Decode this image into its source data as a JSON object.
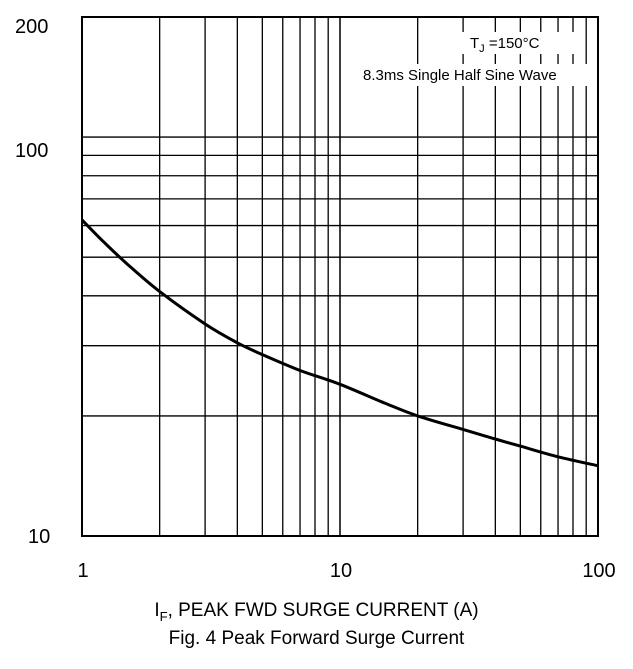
{
  "chart_data": {
    "type": "line",
    "xscale": "log",
    "yscale": "log",
    "xlim": [
      1,
      100
    ],
    "ylim": [
      10,
      200
    ],
    "xticks": [
      "1",
      "10",
      "100"
    ],
    "yticks": [
      "200",
      "100",
      "10"
    ],
    "grid": true,
    "xlabel_prefix": "I",
    "xlabel_sub": "F",
    "xlabel_rest": ", PEAK FWD SURGE CURRENT (A)",
    "caption": "Fig. 4  Peak Forward Surge Current",
    "annotations": {
      "tj_prefix": "T",
      "tj_sub": "J",
      "tj_rest": " =150°C",
      "wave": "8.3ms Single Half Sine Wave"
    },
    "series": [
      {
        "x": [
          1,
          1.2,
          1.5,
          2,
          3,
          4,
          5,
          7,
          10,
          15,
          20,
          30,
          40,
          50,
          70,
          100
        ],
        "y": [
          62,
          55,
          48,
          41,
          34,
          30.5,
          28.5,
          26,
          24,
          21.5,
          20,
          18.5,
          17.5,
          16.8,
          15.8,
          15
        ]
      }
    ]
  }
}
